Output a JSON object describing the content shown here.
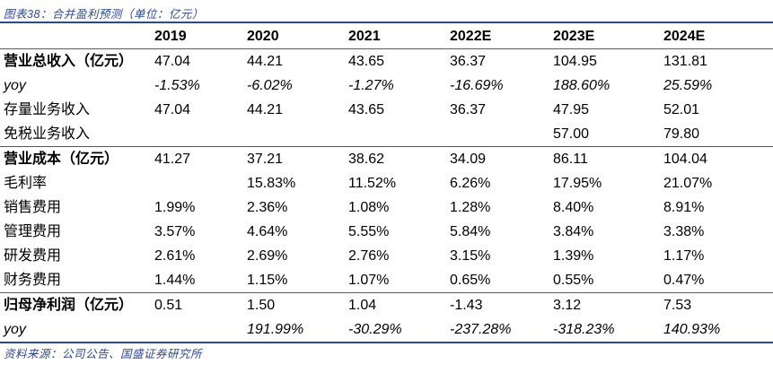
{
  "caption": "图表38：合并盈利预测（单位：亿元）",
  "source": "资料来源：公司公告、国盛证券研究所",
  "headers": [
    "",
    "2019",
    "2020",
    "2021",
    "2022E",
    "2023E",
    "2024E"
  ],
  "rows": [
    {
      "label": "营业总收入（亿元）",
      "values": [
        "47.04",
        "44.21",
        "43.65",
        "36.37",
        "104.95",
        "131.81"
      ]
    },
    {
      "label": "yoy",
      "values": [
        "-1.53%",
        "-6.02%",
        "-1.27%",
        "-16.69%",
        "188.60%",
        "25.59%"
      ]
    },
    {
      "label": "存量业务收入",
      "values": [
        "47.04",
        "44.21",
        "43.65",
        "36.37",
        "47.95",
        "52.01"
      ]
    },
    {
      "label": "免税业务收入",
      "values": [
        "",
        "",
        "",
        "",
        "57.00",
        "79.80"
      ]
    },
    {
      "label": "营业成本（亿元）",
      "values": [
        "41.27",
        "37.21",
        "38.62",
        "34.09",
        "86.11",
        "104.04"
      ]
    },
    {
      "label": "毛利率",
      "values": [
        "",
        "15.83%",
        "11.52%",
        "6.26%",
        "17.95%",
        "21.07%"
      ]
    },
    {
      "label": "销售费用",
      "values": [
        "1.99%",
        "2.36%",
        "1.08%",
        "1.28%",
        "8.40%",
        "8.91%"
      ]
    },
    {
      "label": "管理费用",
      "values": [
        "3.57%",
        "4.64%",
        "5.55%",
        "5.84%",
        "3.84%",
        "3.38%"
      ]
    },
    {
      "label": "研发费用",
      "values": [
        "2.61%",
        "2.69%",
        "2.76%",
        "3.15%",
        "1.39%",
        "1.17%"
      ]
    },
    {
      "label": "财务费用",
      "values": [
        "1.44%",
        "1.15%",
        "1.07%",
        "0.65%",
        "0.55%",
        "0.47%"
      ]
    },
    {
      "label": "归母净利润（亿元）",
      "values": [
        "0.51",
        "1.50",
        "1.04",
        "-1.43",
        "3.12",
        "7.53"
      ]
    },
    {
      "label": "yoy",
      "values": [
        "",
        "191.99%",
        "-30.29%",
        "-237.28%",
        "-318.23%",
        "140.93%"
      ]
    }
  ]
}
